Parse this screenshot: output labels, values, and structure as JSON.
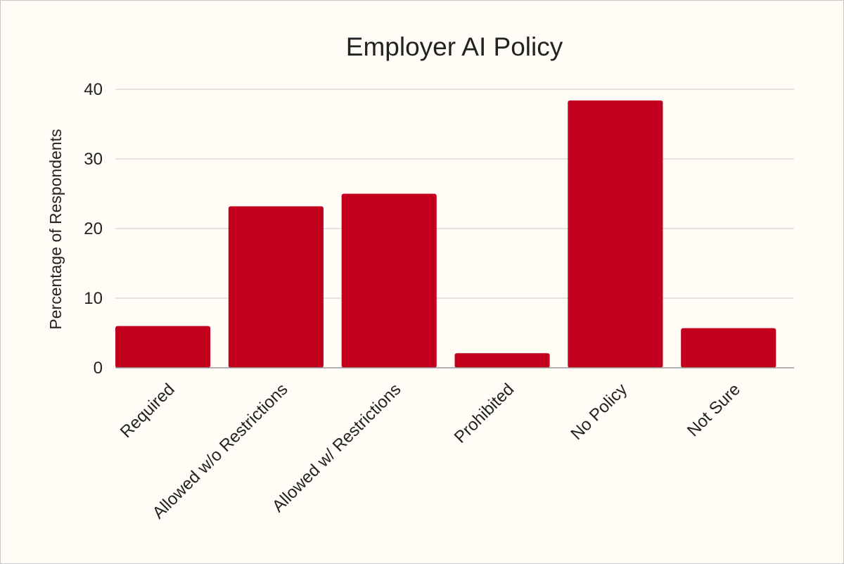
{
  "chart_data": {
    "type": "bar",
    "title": "Employer AI Policy",
    "xlabel": "",
    "ylabel": "Percentage of Respondents",
    "categories": [
      "Required",
      "Allowed w/o Restrictions",
      "Allowed w/ Restrictions",
      "Prohibited",
      "No Policy",
      "Not Sure"
    ],
    "values": [
      6.0,
      23.2,
      25.0,
      2.1,
      38.4,
      5.7
    ],
    "ylim": [
      0,
      40
    ],
    "yticks": [
      "0",
      "10",
      "20",
      "30",
      "40"
    ],
    "grid": true,
    "legend": "none",
    "bar_color": "#c2001d"
  }
}
